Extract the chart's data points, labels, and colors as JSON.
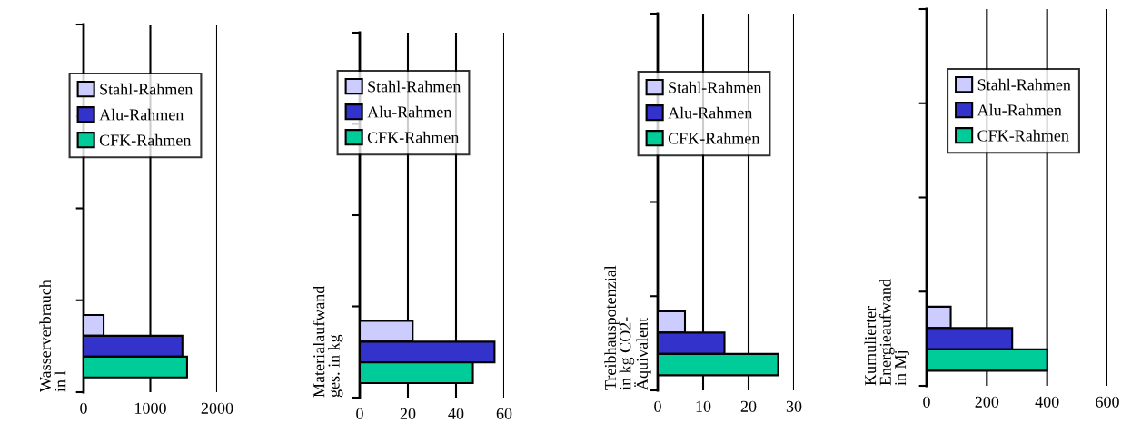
{
  "chart_data": [
    {
      "type": "bar",
      "orientation": "horizontal",
      "ylabel": "Wasserverbrauch\nin l",
      "categories": [
        null,
        null,
        null,
        null
      ],
      "xlim": [
        0,
        2000
      ],
      "xticks": [
        0,
        1000,
        2000
      ],
      "grid": "x",
      "legend": "top",
      "series": [
        {
          "name": "Stahl-Rahmen",
          "color": "#ccccff",
          "values": [
            null,
            null,
            null,
            300
          ]
        },
        {
          "name": "Alu-Rahmen",
          "color": "#3333cc",
          "values": [
            null,
            null,
            null,
            1480
          ]
        },
        {
          "name": "CFK-Rahmen",
          "color": "#00cc99",
          "values": [
            null,
            null,
            null,
            1550
          ]
        }
      ]
    },
    {
      "type": "bar",
      "orientation": "horizontal",
      "ylabel": "Materialaufwand\nges. in kg",
      "categories": [
        null,
        null,
        null,
        null
      ],
      "xlim": [
        0,
        60
      ],
      "xticks": [
        0,
        20,
        40,
        60
      ],
      "grid": "x",
      "legend": "top",
      "series": [
        {
          "name": "Stahl-Rahmen",
          "color": "#ccccff",
          "values": [
            null,
            null,
            null,
            22
          ]
        },
        {
          "name": "Alu-Rahmen",
          "color": "#3333cc",
          "values": [
            null,
            null,
            null,
            56
          ]
        },
        {
          "name": "CFK-Rahmen",
          "color": "#00cc99",
          "values": [
            null,
            null,
            null,
            47
          ]
        }
      ]
    },
    {
      "type": "bar",
      "orientation": "horizontal",
      "ylabel": "Treibhauspotenzial\nin kg CO2-\nÄquivalent",
      "categories": [
        null,
        null,
        null,
        null
      ],
      "xlim": [
        0,
        30
      ],
      "xticks": [
        0,
        10,
        20,
        30
      ],
      "grid": "x",
      "legend": "top",
      "series": [
        {
          "name": "Stahl-Rahmen",
          "color": "#ccccff",
          "values": [
            null,
            null,
            null,
            6
          ]
        },
        {
          "name": "Alu-Rahmen",
          "color": "#3333cc",
          "values": [
            null,
            null,
            null,
            14.7
          ]
        },
        {
          "name": "CFK-Rahmen",
          "color": "#00cc99",
          "values": [
            null,
            null,
            null,
            26.5
          ]
        }
      ]
    },
    {
      "type": "bar",
      "orientation": "horizontal",
      "ylabel": "Kumulierter\nEnergieaufwand\nin Mj",
      "categories": [
        null,
        null,
        null,
        null
      ],
      "xlim": [
        0,
        600
      ],
      "xticks": [
        0,
        200,
        400,
        600
      ],
      "grid": "x",
      "legend": "top",
      "series": [
        {
          "name": "Stahl-Rahmen",
          "color": "#ccccff",
          "values": [
            null,
            null,
            null,
            80
          ]
        },
        {
          "name": "Alu-Rahmen",
          "color": "#3333cc",
          "values": [
            null,
            null,
            null,
            284
          ]
        },
        {
          "name": "CFK-Rahmen",
          "color": "#00cc99",
          "values": [
            null,
            null,
            null,
            400
          ]
        }
      ]
    }
  ]
}
